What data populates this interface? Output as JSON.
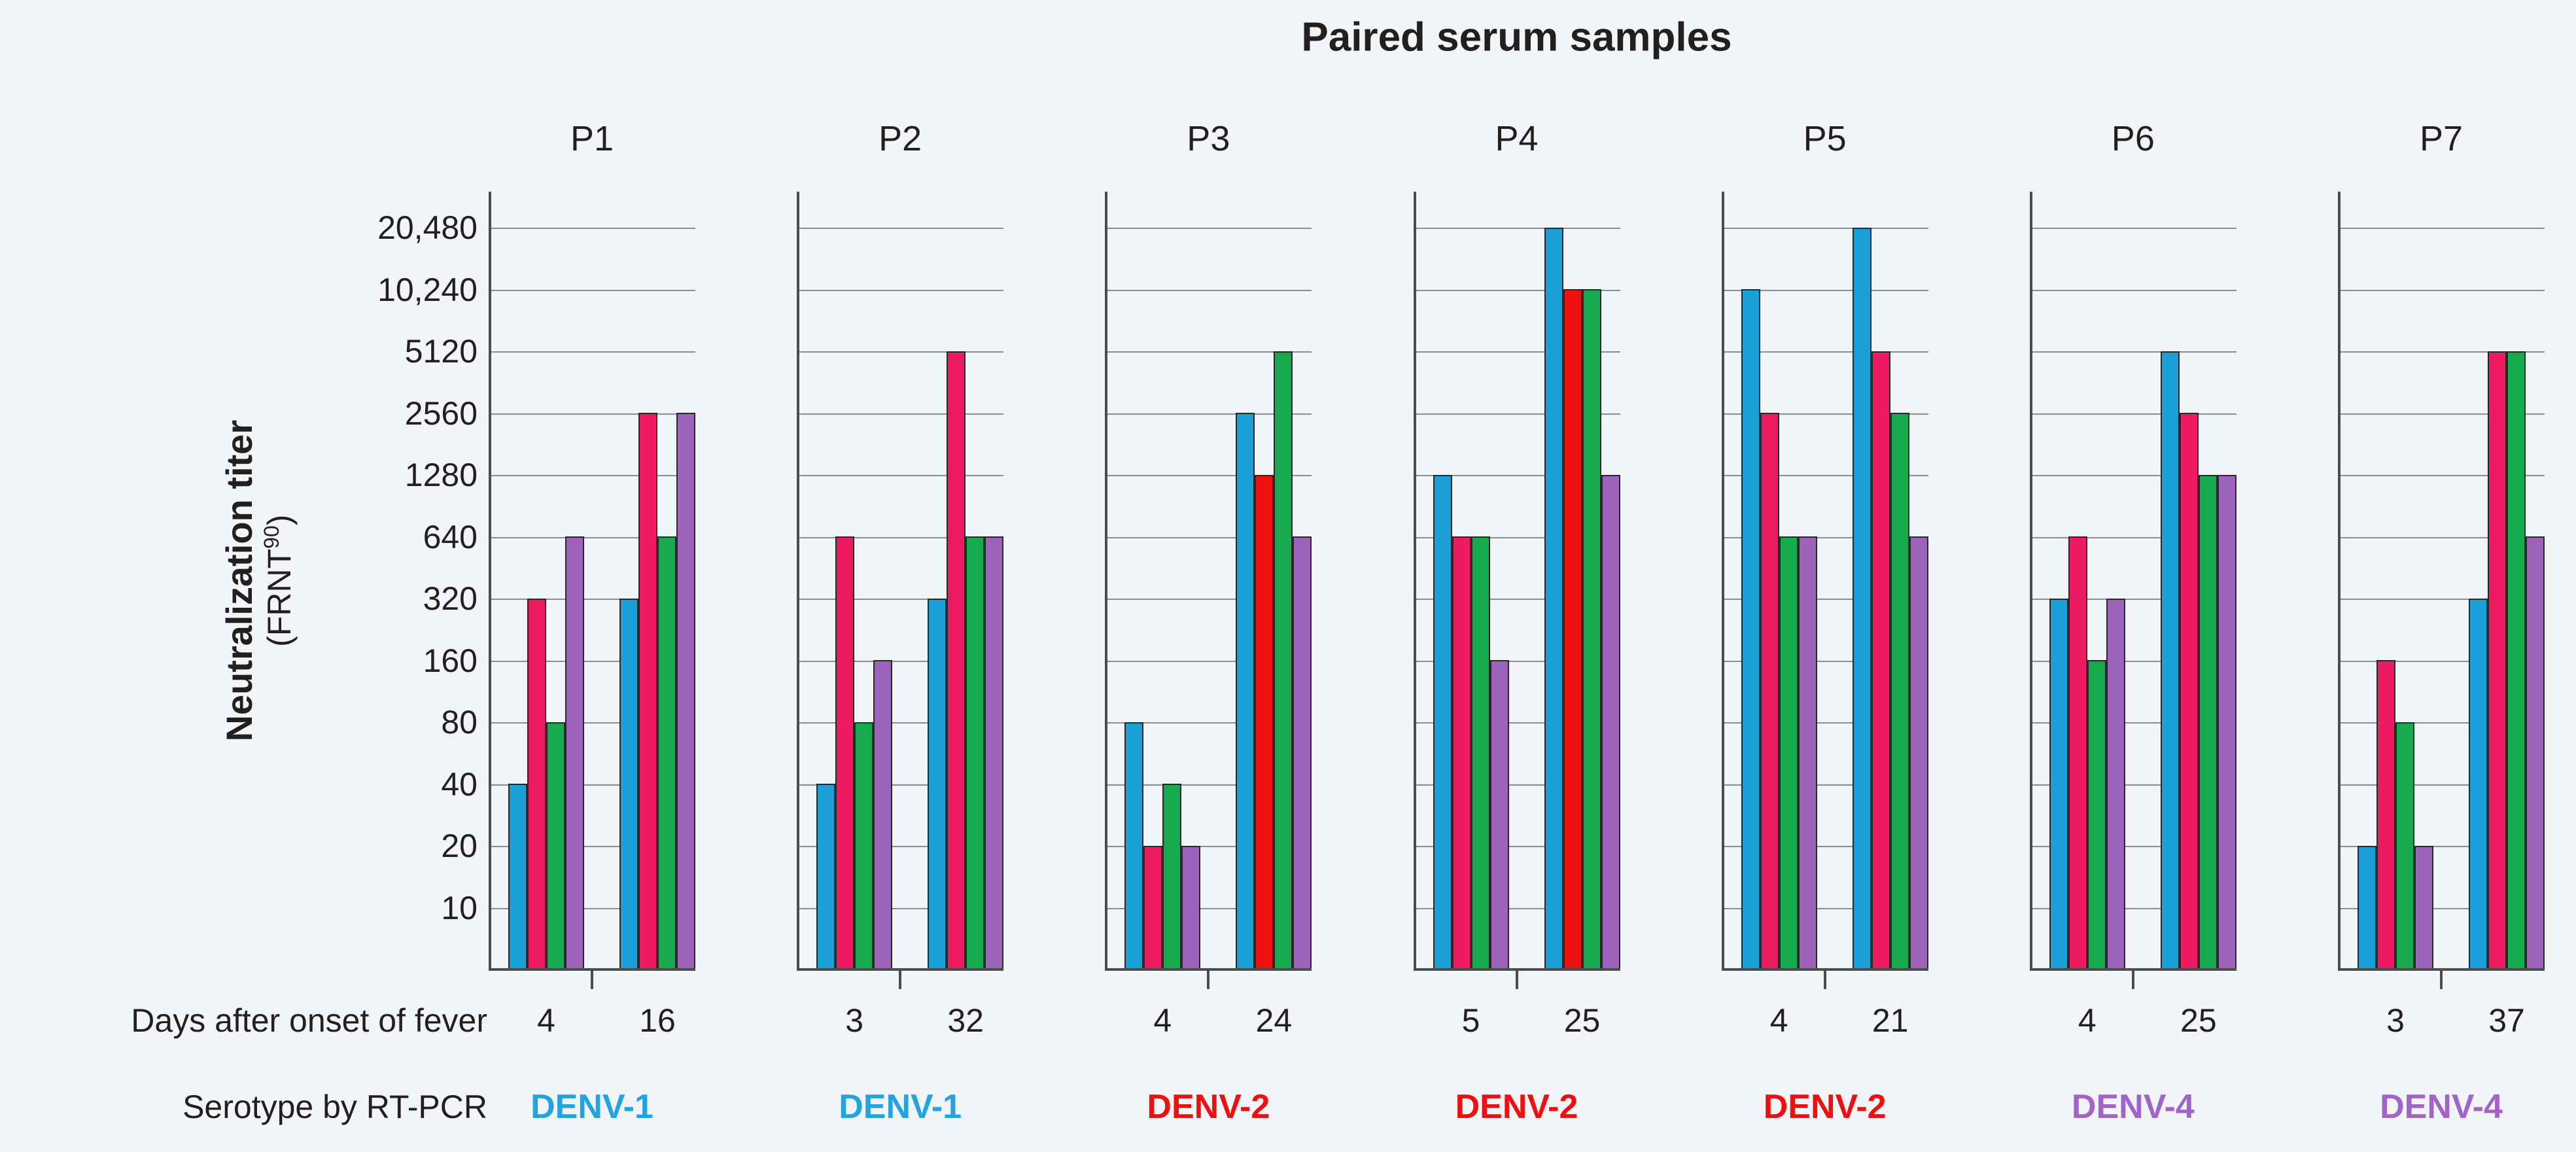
{
  "chart_data": {
    "type": "bar",
    "title": "Paired serum samples",
    "y_axis": {
      "label_line1": "Neutralization titer",
      "label_line2_open": "(FRNT",
      "label_line2_sup": "90",
      "label_line2_close": ")",
      "scale": "log2",
      "tick_labels": [
        "20,480",
        "10,240",
        "5120",
        "2560",
        "1280",
        "640",
        "320",
        "160",
        "80",
        "40",
        "20",
        "10"
      ],
      "tick_values": [
        20480,
        10240,
        5120,
        2560,
        1280,
        640,
        320,
        160,
        80,
        40,
        20,
        10
      ],
      "ylim_top": 20480,
      "grid": true
    },
    "rows": {
      "days_label": "Days after onset of fever",
      "serotype_label": "Serotype by RT-PCR"
    },
    "palette": {
      "blue": "#1a9fd9",
      "pink": "#ee1b63",
      "green": "#16a94e",
      "purple": "#9d63ba",
      "red": "#f01210"
    },
    "serotype_colors": {
      "DENV-1": "#23a3df",
      "DENV-2": "#f10e0e",
      "DENV-4": "#a065c5"
    },
    "default_bar_colors": [
      "blue",
      "pink",
      "green",
      "purple"
    ],
    "panels": [
      {
        "label": "P1",
        "serotype": "DENV-1",
        "groups": [
          {
            "day": "4",
            "values": [
              40,
              320,
              80,
              640
            ],
            "colors": [
              "blue",
              "pink",
              "green",
              "purple"
            ]
          },
          {
            "day": "16",
            "values": [
              320,
              2560,
              640,
              2560
            ],
            "colors": [
              "blue",
              "pink",
              "green",
              "purple"
            ]
          }
        ]
      },
      {
        "label": "P2",
        "serotype": "DENV-1",
        "groups": [
          {
            "day": "3",
            "values": [
              40,
              640,
              80,
              160
            ],
            "colors": [
              "blue",
              "pink",
              "green",
              "purple"
            ]
          },
          {
            "day": "32",
            "values": [
              320,
              5120,
              640,
              640
            ],
            "colors": [
              "blue",
              "pink",
              "green",
              "purple"
            ]
          }
        ]
      },
      {
        "label": "P3",
        "serotype": "DENV-2",
        "groups": [
          {
            "day": "4",
            "values": [
              80,
              20,
              40,
              20
            ],
            "colors": [
              "blue",
              "pink",
              "green",
              "purple"
            ]
          },
          {
            "day": "24",
            "values": [
              2560,
              1280,
              5120,
              640
            ],
            "colors": [
              "blue",
              "red",
              "green",
              "purple"
            ]
          }
        ]
      },
      {
        "label": "P4",
        "serotype": "DENV-2",
        "groups": [
          {
            "day": "5",
            "values": [
              1280,
              640,
              640,
              160
            ],
            "colors": [
              "blue",
              "pink",
              "green",
              "purple"
            ]
          },
          {
            "day": "25",
            "values": [
              20480,
              10240,
              10240,
              1280
            ],
            "colors": [
              "blue",
              "red",
              "green",
              "purple"
            ]
          }
        ]
      },
      {
        "label": "P5",
        "serotype": "DENV-2",
        "groups": [
          {
            "day": "4",
            "values": [
              10240,
              2560,
              640,
              640
            ],
            "colors": [
              "blue",
              "pink",
              "green",
              "purple"
            ]
          },
          {
            "day": "21",
            "values": [
              20480,
              5120,
              2560,
              640
            ],
            "colors": [
              "blue",
              "pink",
              "green",
              "purple"
            ]
          }
        ]
      },
      {
        "label": "P6",
        "serotype": "DENV-4",
        "groups": [
          {
            "day": "4",
            "values": [
              320,
              640,
              160,
              320
            ],
            "colors": [
              "blue",
              "pink",
              "green",
              "purple"
            ]
          },
          {
            "day": "25",
            "values": [
              5120,
              2560,
              1280,
              1280
            ],
            "colors": [
              "blue",
              "pink",
              "green",
              "purple"
            ]
          }
        ]
      },
      {
        "label": "P7",
        "serotype": "DENV-4",
        "groups": [
          {
            "day": "3",
            "values": [
              20,
              160,
              80,
              20
            ],
            "colors": [
              "blue",
              "pink",
              "green",
              "purple"
            ]
          },
          {
            "day": "37",
            "values": [
              320,
              5120,
              5120,
              640
            ],
            "colors": [
              "blue",
              "pink",
              "green",
              "purple"
            ]
          }
        ]
      }
    ]
  }
}
